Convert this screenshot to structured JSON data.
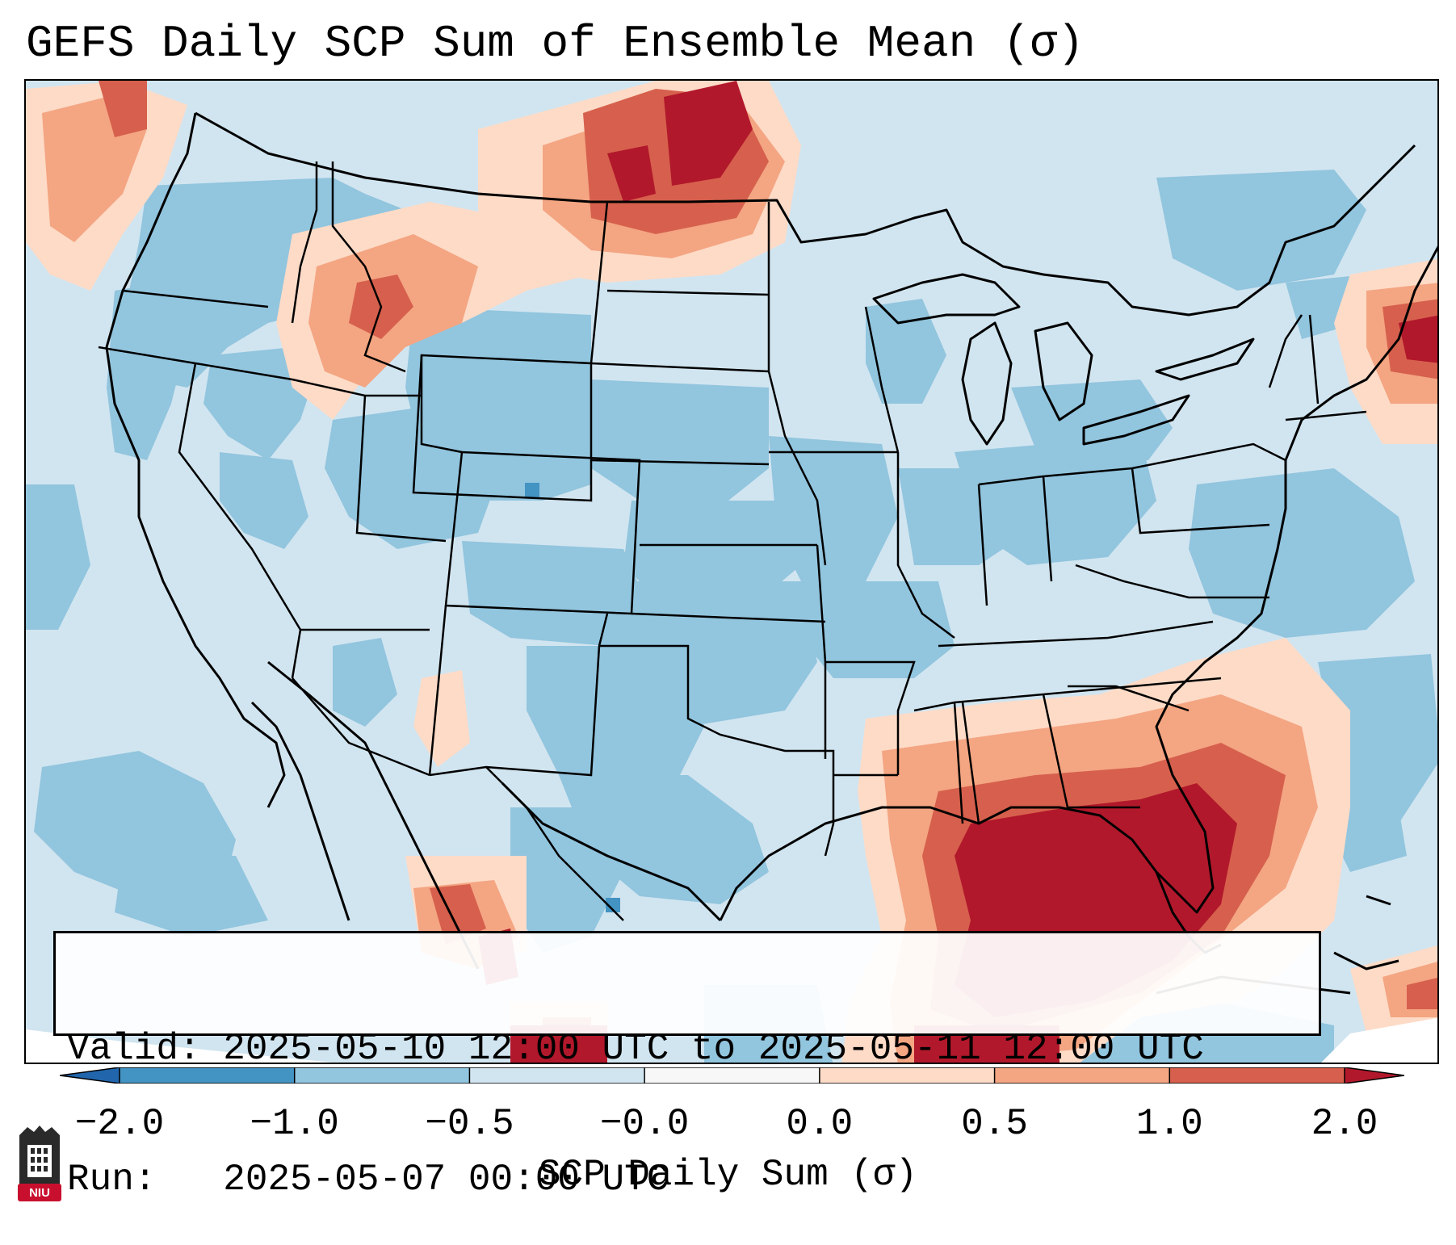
{
  "title": "GEFS Daily SCP Sum of Ensemble Mean (σ)",
  "info": {
    "valid_line": "Valid: 2025-05-10 12:00 UTC to 2025-05-11 12:00 UTC",
    "run_line": "Run:   2025-05-07 00:00 UTC"
  },
  "colorbar": {
    "label": "SCP Daily Sum (σ)",
    "ticks": [
      "−2.0",
      "−1.0",
      "−0.5",
      "−0.0",
      "0.0",
      "0.5",
      "1.0",
      "2.0"
    ],
    "bins": [
      {
        "from": -2.0,
        "to": -1.0,
        "color": "#4393c3"
      },
      {
        "from": -1.0,
        "to": -0.5,
        "color": "#92c5de"
      },
      {
        "from": -0.5,
        "to": 0.0,
        "color": "#d1e5f0"
      },
      {
        "from": 0.0,
        "to": 0.0,
        "color": "#f7f7f7"
      },
      {
        "from": 0.0,
        "to": 0.5,
        "color": "#fddbc7"
      },
      {
        "from": 0.5,
        "to": 1.0,
        "color": "#f4a582"
      },
      {
        "from": 1.0,
        "to": 2.0,
        "color": "#d6604d"
      }
    ],
    "under_color": "#2166ac",
    "over_color": "#b2182b"
  },
  "map": {
    "region": "CONUS",
    "layers": [
      "state-borders",
      "coastlines",
      "country-borders",
      "great-lakes"
    ],
    "background_color": "#d1e5f0"
  },
  "logo": {
    "text": "NIU",
    "colors": {
      "shield": "#2a2a2a",
      "band": "#c8102e"
    }
  }
}
